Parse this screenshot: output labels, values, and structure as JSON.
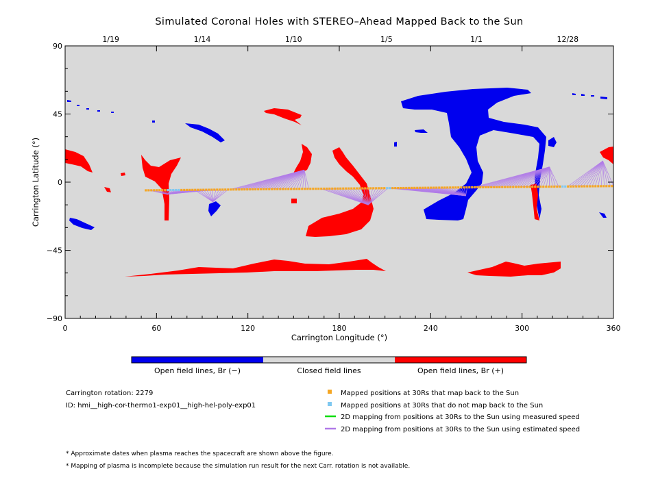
{
  "chart_data": {
    "type": "map",
    "title": "Simulated Coronal Holes with STEREO–Ahead Mapped Back to the Sun",
    "xlabel": "Carrington Longitude (°)",
    "ylabel": "Carrington Latitude (°)",
    "xlim": [
      0,
      360
    ],
    "ylim": [
      -90,
      90
    ],
    "x_ticks": [
      0,
      60,
      120,
      180,
      240,
      300,
      360
    ],
    "y_ticks": [
      90,
      45,
      0,
      -45,
      -90
    ],
    "x_tick_labels": [
      "0",
      "60",
      "120",
      "180",
      "240",
      "300",
      "360"
    ],
    "y_tick_labels": [
      "90",
      "45",
      "0",
      "−45",
      "−90"
    ],
    "top_axis": {
      "dates": [
        {
          "label": "1/19",
          "lon": 30
        },
        {
          "label": "1/14",
          "lon": 90
        },
        {
          "label": "1/10",
          "lon": 150
        },
        {
          "label": "1/5",
          "lon": 211
        },
        {
          "label": "1/1",
          "lon": 270
        },
        {
          "label": "12/28",
          "lon": 330
        }
      ]
    },
    "background_color": "#d9d9d9",
    "colors": {
      "negative": "#0000ee",
      "positive": "#ff0000",
      "closed": "#d9d9d9",
      "mapped": "#f5a623",
      "unmapped": "#7fc8f0",
      "measured": "#00dd00",
      "estimated": "#b07ae8"
    },
    "colorbar": [
      {
        "label": "Open field lines, Br (−)",
        "color": "#0000ee"
      },
      {
        "label": "Closed field lines",
        "color": "#d9d9d9"
      },
      {
        "label": "Open field lines, Br (+)",
        "color": "#ff0000"
      }
    ],
    "trajectory": {
      "lon_start": 53,
      "lon_end": 360,
      "lat_start": -5.4,
      "lat_end": -2.6,
      "unmapped_lon_ranges": [
        [
          67,
          75
        ],
        [
          210,
          214
        ],
        [
          325,
          330
        ]
      ]
    },
    "mapping_fans": [
      {
        "target": [
          67,
          -8
        ],
        "lon_range": [
          55,
          100
        ]
      },
      {
        "target": [
          97,
          -13
        ],
        "lon_range": [
          85,
          107
        ]
      },
      {
        "target": [
          157,
          8
        ],
        "lon_range": [
          108,
          160
        ]
      },
      {
        "target": [
          199,
          -15
        ],
        "lon_range": [
          168,
          200
        ]
      },
      {
        "target": [
          199,
          -15
        ],
        "lon_range": [
          202,
          212
        ]
      },
      {
        "target": [
          263,
          -9
        ],
        "lon_range": [
          212,
          265
        ]
      },
      {
        "target": [
          318,
          10
        ],
        "lon_range": [
          268,
          318
        ]
      },
      {
        "target": [
          318,
          10
        ],
        "lon_range": [
          318,
          325
        ]
      },
      {
        "target": [
          353,
          14
        ],
        "lon_range": [
          330,
          360
        ]
      }
    ]
  },
  "info": {
    "rotation": "Carrington rotation: 2279",
    "id": "ID: hmi__high-cor-thermo1-exp01__high-hel-poly-exp01"
  },
  "legend": [
    {
      "label": "Mapped positions at 30Rs that map back to the Sun",
      "marker": "square",
      "color": "#f5a623"
    },
    {
      "label": "Mapped positions at 30Rs that do not map back to the Sun",
      "marker": "square",
      "color": "#7fc8f0"
    },
    {
      "label": "2D mapping from positions at 30Rs to the Sun using measured speed",
      "marker": "line",
      "color": "#00dd00"
    },
    {
      "label": "2D mapping from positions at 30Rs to the Sun using estimated speed",
      "marker": "line",
      "color": "#b07ae8"
    }
  ],
  "notes": [
    "* Approximate dates when plasma reaches the spacecraft are shown above the figure.",
    "* Mapping of plasma is incomplete because the simulation run result for the next Carr. rotation is not available."
  ]
}
